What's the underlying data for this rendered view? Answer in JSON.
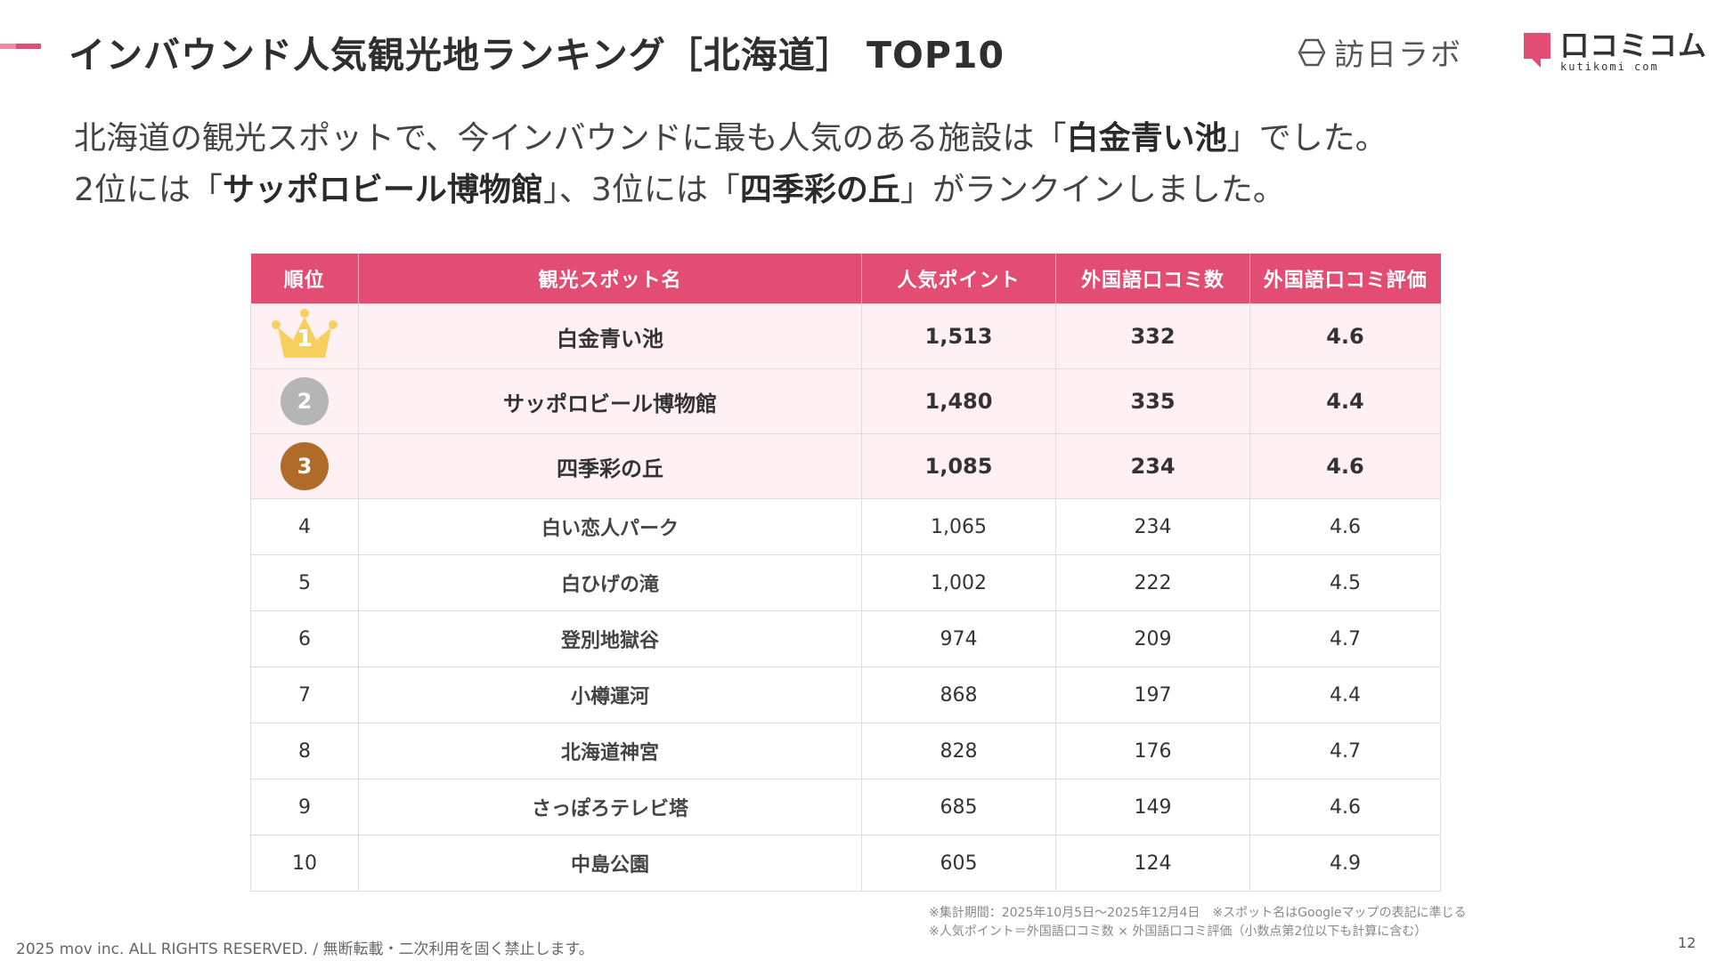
{
  "title": "インバウンド人気観光地ランキング［北海道］ TOP10",
  "logos": {
    "houjin_labo": "訪日ラボ",
    "kuchikomi_com": "口コミコム",
    "kuchikomi_sub": "kutikomi com"
  },
  "lead": {
    "line1_a": "北海道の観光スポットで、今インバウンドに最も人気のある施設は「",
    "line1_b": "白金青い池",
    "line1_c": "」でした。",
    "line2_a": "2位には「",
    "line2_b": "サッポロビール博物館",
    "line2_c": "」、3位には「",
    "line2_d": "四季彩の丘",
    "line2_e": "」がランクインしました。"
  },
  "table": {
    "headers": [
      "順位",
      "観光スポット名",
      "人気ポイント",
      "外国語口コミ数",
      "外国語口コミ評価"
    ],
    "rows": [
      {
        "rank": "1",
        "name": "白金青い池",
        "points": "1,513",
        "reviews": "332",
        "rating": "4.6"
      },
      {
        "rank": "2",
        "name": "サッポロビール博物館",
        "points": "1,480",
        "reviews": "335",
        "rating": "4.4"
      },
      {
        "rank": "3",
        "name": "四季彩の丘",
        "points": "1,085",
        "reviews": "234",
        "rating": "4.6"
      },
      {
        "rank": "4",
        "name": "白い恋人パーク",
        "points": "1,065",
        "reviews": "234",
        "rating": "4.6"
      },
      {
        "rank": "5",
        "name": "白ひげの滝",
        "points": "1,002",
        "reviews": "222",
        "rating": "4.5"
      },
      {
        "rank": "6",
        "name": "登別地獄谷",
        "points": "974",
        "reviews": "209",
        "rating": "4.7"
      },
      {
        "rank": "7",
        "name": "小樽運河",
        "points": "868",
        "reviews": "197",
        "rating": "4.4"
      },
      {
        "rank": "8",
        "name": "北海道神宮",
        "points": "828",
        "reviews": "176",
        "rating": "4.7"
      },
      {
        "rank": "9",
        "name": "さっぽろテレビ塔",
        "points": "685",
        "reviews": "149",
        "rating": "4.6"
      },
      {
        "rank": "10",
        "name": "中島公園",
        "points": "605",
        "reviews": "124",
        "rating": "4.9"
      }
    ]
  },
  "notes": {
    "line1": "※集計期間：2025年10月5日～2025年12月4日　※スポット名はGoogleマップの表記に準じる",
    "line2": "※人気ポイント＝外国語口コミ数 × 外国語口コミ評価（小数点第2位以下も計算に含む）"
  },
  "copyright": "2025 mov inc. ALL RIGHTS RESERVED. / 無断転載・二次利用を固く禁止します。",
  "page_number": "12",
  "colors": {
    "accent": "#e34d73",
    "top_row_bg": "#fff0f4",
    "gold": "#f7cf5c",
    "silver": "#b5b5b5",
    "bronze": "#b06a2a"
  }
}
